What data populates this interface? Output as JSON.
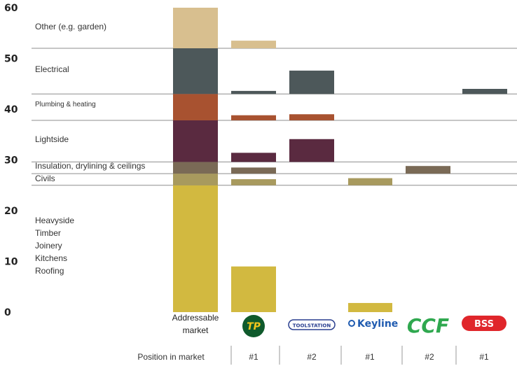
{
  "chart_data": {
    "type": "bar",
    "y_ticks": [
      "60",
      "50",
      "40",
      "30",
      "20",
      "10",
      "0"
    ],
    "ylim": [
      0,
      60
    ],
    "grid": "horizontal segment boundaries",
    "segments": [
      {
        "key": "heavyside",
        "color": "#d2b940",
        "range": [
          0,
          25
        ]
      },
      {
        "key": "civils",
        "label": "Civils",
        "color": "#a89a5e",
        "range": [
          25,
          27.3
        ]
      },
      {
        "key": "insulation",
        "label": "Insulation, drylining & ceilings",
        "color": "#7a6a56",
        "range": [
          27.3,
          29.6
        ]
      },
      {
        "key": "lightside",
        "label": "Lightside",
        "color": "#5a2a40",
        "range": [
          29.6,
          37.8
        ]
      },
      {
        "key": "plumbing",
        "label": "Plumbing & heating",
        "color": "#a85230",
        "range": [
          37.8,
          43
        ]
      },
      {
        "key": "electrical",
        "label": "Electrical",
        "color": "#4d585a",
        "range": [
          43,
          52
        ]
      },
      {
        "key": "other",
        "label": "Other (e.g. garden)",
        "color": "#d8bf8f",
        "range": [
          52,
          60
        ]
      }
    ],
    "heavyside_labels": [
      "Heavyside",
      "Timber",
      "Joinery",
      "Kitchens",
      "Roofing"
    ],
    "categories": [
      "Addressable market",
      "Travis Perkins",
      "Toolstation",
      "Keyline",
      "CCF",
      "BSS"
    ],
    "addressable_label_lines": [
      "Addressable",
      "market"
    ],
    "bars": [
      {
        "category": "Addressable market",
        "segments": [
          {
            "key": "heavyside",
            "y0": 0,
            "y1": 25
          },
          {
            "key": "civils",
            "y0": 25,
            "y1": 27.3
          },
          {
            "key": "insulation",
            "y0": 27.3,
            "y1": 29.6
          },
          {
            "key": "lightside",
            "y0": 29.6,
            "y1": 37.8
          },
          {
            "key": "plumbing",
            "y0": 37.8,
            "y1": 43
          },
          {
            "key": "electrical",
            "y0": 43,
            "y1": 52
          },
          {
            "key": "other",
            "y0": 52,
            "y1": 60
          }
        ]
      },
      {
        "category": "Travis Perkins",
        "segments": [
          {
            "key": "heavyside",
            "y0": 0,
            "y1": 9
          },
          {
            "key": "civils",
            "y0": 25,
            "y1": 26.2
          },
          {
            "key": "insulation",
            "y0": 27.3,
            "y1": 28.5
          },
          {
            "key": "lightside",
            "y0": 29.6,
            "y1": 31.4
          },
          {
            "key": "plumbing",
            "y0": 37.8,
            "y1": 38.8
          },
          {
            "key": "electrical",
            "y0": 43,
            "y1": 43.6
          },
          {
            "key": "other",
            "y0": 52,
            "y1": 53.5
          }
        ]
      },
      {
        "category": "Toolstation",
        "segments": [
          {
            "key": "lightside",
            "y0": 29.6,
            "y1": 34.1
          },
          {
            "key": "plumbing",
            "y0": 37.8,
            "y1": 39.0
          },
          {
            "key": "electrical",
            "y0": 43,
            "y1": 47.6
          }
        ]
      },
      {
        "category": "Keyline",
        "segments": [
          {
            "key": "heavyside",
            "y0": 0,
            "y1": 1.8
          },
          {
            "key": "civils",
            "y0": 25,
            "y1": 26.4
          }
        ]
      },
      {
        "category": "CCF",
        "segments": [
          {
            "key": "insulation",
            "y0": 27.3,
            "y1": 28.8
          }
        ]
      },
      {
        "category": "BSS",
        "segments": [
          {
            "key": "electrical",
            "y0": 43,
            "y1": 44.0
          }
        ]
      }
    ],
    "position_header": "Position in market",
    "positions": [
      "#1",
      "#2",
      "#1",
      "#2",
      "#1"
    ]
  },
  "logos": {
    "travis_perkins": {
      "text": "TP",
      "bg": "#0f5a2c",
      "fg": "#f2c51c"
    },
    "toolstation": {
      "text": "TOOLSTATION",
      "color": "#2a3f8f"
    },
    "keyline": {
      "text": "Keyline",
      "color": "#1f5bb0"
    },
    "ccf": {
      "text": "CCF",
      "color": "#2fa84f"
    },
    "bss": {
      "text": "BSS",
      "color": "#e0262b"
    }
  }
}
